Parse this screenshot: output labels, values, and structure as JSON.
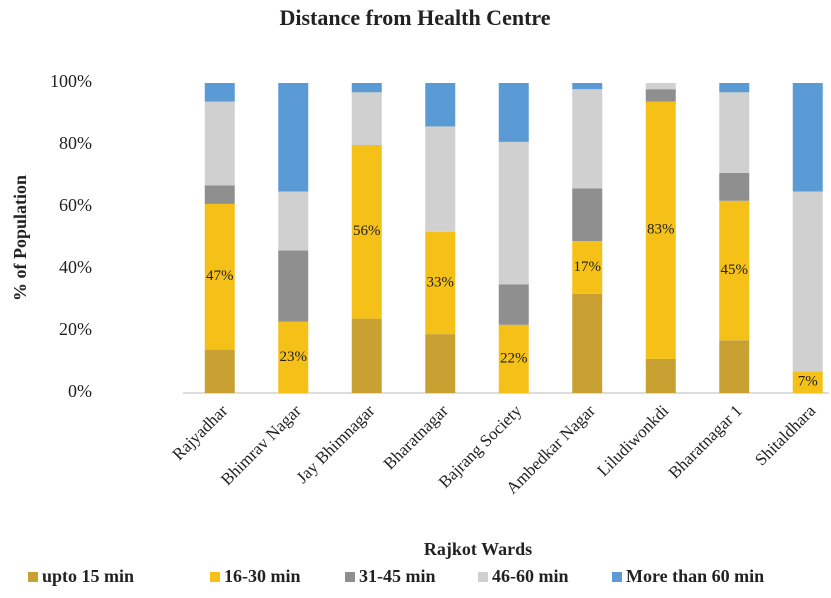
{
  "chart_data": {
    "type": "stacked_bar",
    "title": "Distance from Health Centre",
    "x_label": "Rajkot Wards",
    "y_label": "% of Population",
    "categories": [
      "Rajyadhar",
      "Bhimrav Nagar",
      "Jay Bhimnagar",
      "Bharatnagar",
      "Bajrang Society",
      "Ambedkar Nagar",
      "Liludiwonkdi",
      "Bharatnagar 1",
      "Shitaldhara"
    ],
    "series": [
      {
        "name": "upto 15 min",
        "color": "#c9a133",
        "values": [
          14,
          0,
          24,
          19,
          0,
          32,
          11,
          17,
          0
        ]
      },
      {
        "name": "16-30 min",
        "color": "#f5c118",
        "values": [
          47,
          23,
          56,
          33,
          22,
          17,
          83,
          45,
          7
        ],
        "value_labels": [
          "47%",
          "23%",
          "56%",
          "33%",
          "22%",
          "17%",
          "83%",
          "45%",
          "7%"
        ]
      },
      {
        "name": "31-45 min",
        "color": "#8f8f8f",
        "values": [
          6,
          23,
          0,
          0,
          13,
          17,
          4,
          9,
          0
        ]
      },
      {
        "name": "46-60 min",
        "color": "#d0d0d0",
        "values": [
          27,
          19,
          17,
          34,
          46,
          32,
          2,
          26,
          58
        ]
      },
      {
        "name": "More than 60 min",
        "color": "#5b9bd5",
        "values": [
          6,
          35,
          3,
          14,
          19,
          2,
          0,
          3,
          35
        ]
      }
    ],
    "ylim": [
      0,
      100
    ],
    "yticks": [
      {
        "value": 0,
        "label": "0%"
      },
      {
        "value": 20,
        "label": "20%"
      },
      {
        "value": 40,
        "label": "40%"
      },
      {
        "value": 60,
        "label": "60%"
      },
      {
        "value": 80,
        "label": "80%"
      },
      {
        "value": 100,
        "label": "100%"
      }
    ],
    "legend": "bottom"
  }
}
